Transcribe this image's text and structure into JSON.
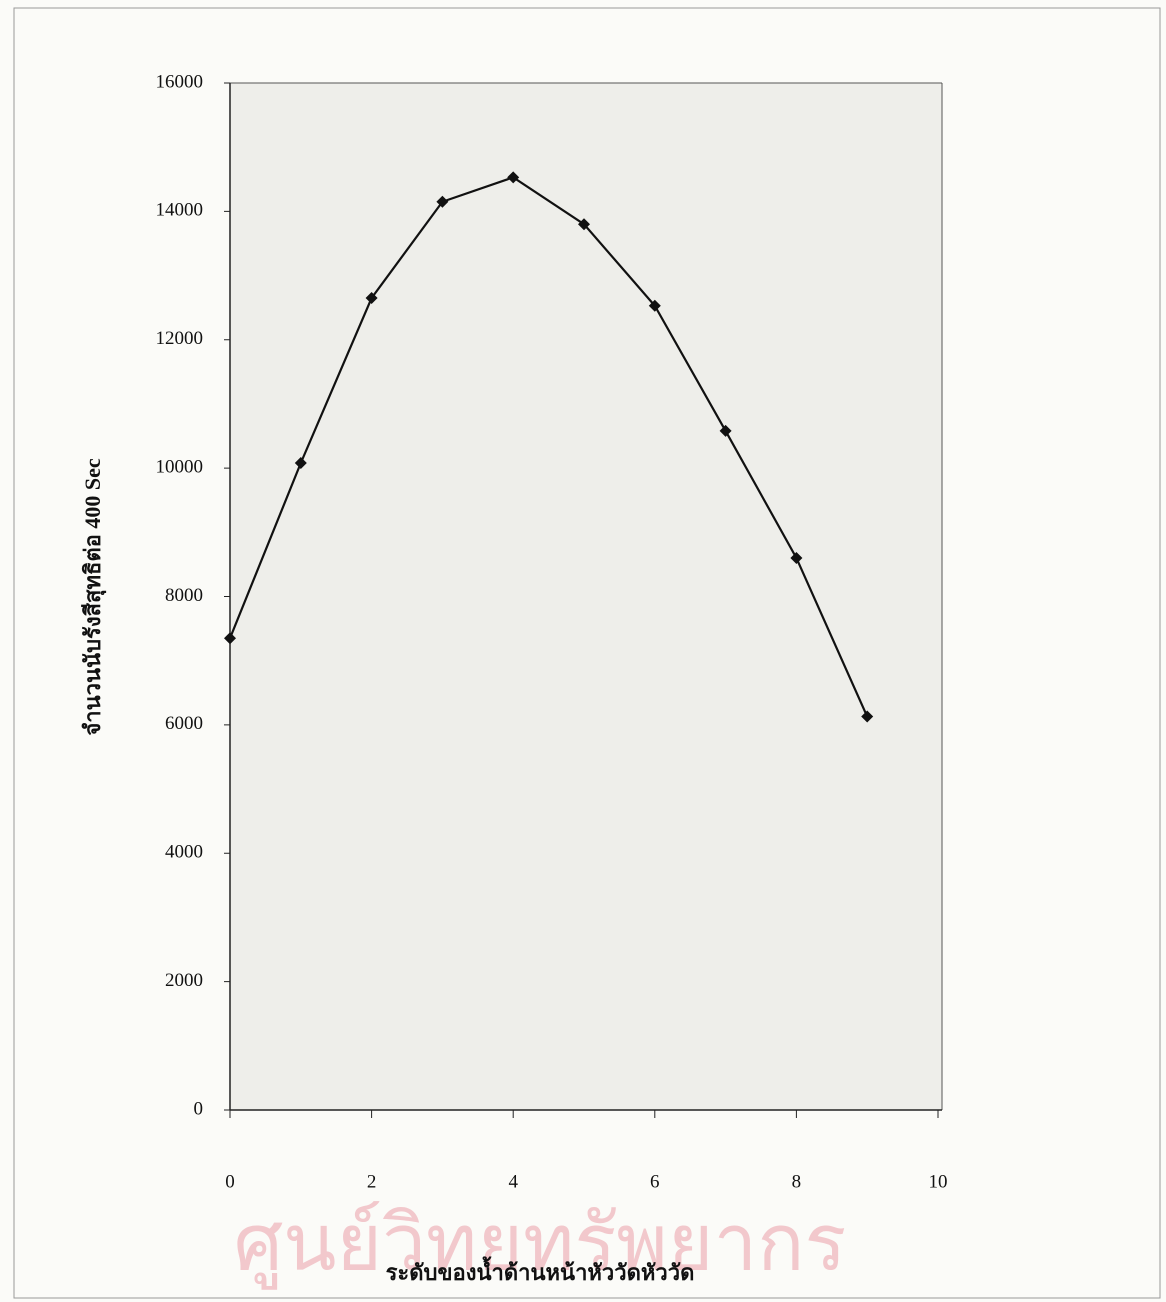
{
  "chart_data": {
    "type": "line",
    "x_label": "ระดับของน้ำด้านหน้าหัววัดหัววัด",
    "y_label": "จำนวนนับรังสีสุทธิต่อ 400 Sec",
    "watermark": "ศูนย์วิทยทรัพยากร",
    "x": [
      0,
      1,
      2,
      3,
      4,
      5,
      6,
      7,
      8,
      9
    ],
    "values": [
      7350,
      10080,
      12650,
      14150,
      14530,
      13800,
      12530,
      10580,
      8600,
      6130
    ],
    "color": "#111111",
    "xlim": [
      0,
      10
    ],
    "xticks": [
      0,
      2,
      4,
      6,
      8,
      10
    ],
    "ylim": [
      0,
      16000
    ],
    "yticks": [
      0,
      2000,
      4000,
      6000,
      8000,
      10000,
      12000,
      14000,
      16000
    ],
    "marker": "diamond"
  }
}
